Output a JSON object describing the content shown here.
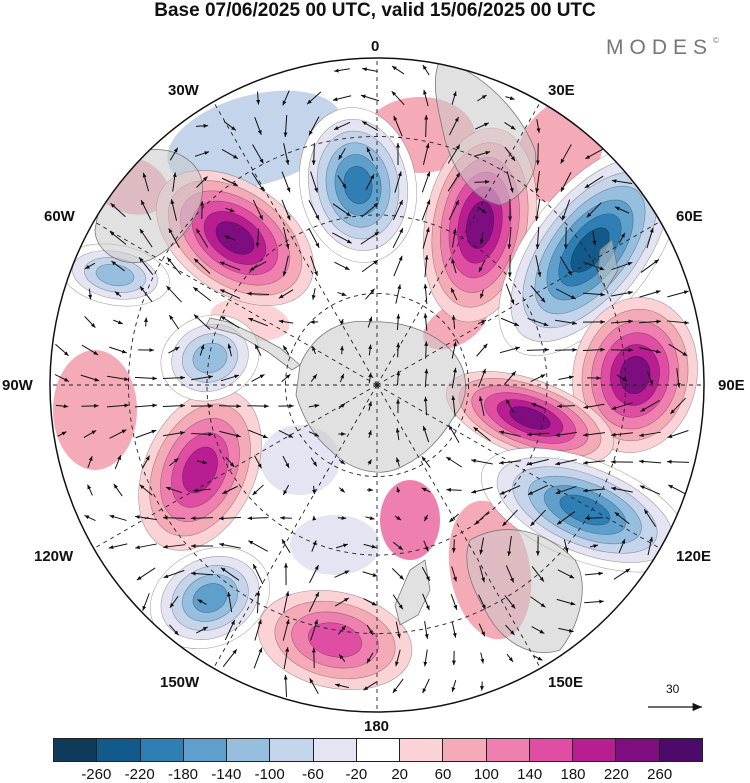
{
  "title": "Base 07/06/2025 00 UTC, valid 15/06/2025 00 UTC",
  "brand": "MODES",
  "brand_mark": "©",
  "lon_labels": [
    "0",
    "30E",
    "60E",
    "90E",
    "120E",
    "150E",
    "180",
    "150W",
    "120W",
    "90W",
    "60W",
    "30W"
  ],
  "reference_vector": "30",
  "colorbar": {
    "ticks": [
      "-260",
      "-220",
      "-180",
      "-140",
      "-100",
      "-60",
      "-20",
      "20",
      "60",
      "100",
      "140",
      "180",
      "220",
      "260"
    ],
    "colors": [
      "#0e3a5c",
      "#115a8a",
      "#2f7fb4",
      "#5f9fcb",
      "#96bedf",
      "#c4d4ea",
      "#e4e4f2",
      "#ffffff",
      "#fbd3d6",
      "#f5aab8",
      "#ee7fae",
      "#e04ea3",
      "#b81e91",
      "#7e0d80",
      "#4d0a6b"
    ]
  },
  "anomaly_centers": [
    {
      "name": "anomaly-low-0E",
      "value": -240
    },
    {
      "name": "anomaly-high-20E",
      "value": 250
    },
    {
      "name": "anomaly-low-50E",
      "value": -270
    },
    {
      "name": "anomaly-high-85E",
      "value": 230
    },
    {
      "name": "anomaly-high-100E",
      "value": 220
    },
    {
      "name": "anomaly-low-110E",
      "value": -230
    },
    {
      "name": "anomaly-high-175E",
      "value": 170
    },
    {
      "name": "anomaly-low-140W",
      "value": -210
    },
    {
      "name": "anomaly-high-115W",
      "value": 200
    },
    {
      "name": "anomaly-low-80W",
      "value": -160
    },
    {
      "name": "anomaly-low-65W",
      "value": -150
    },
    {
      "name": "anomaly-high-40W",
      "value": 220
    }
  ]
}
